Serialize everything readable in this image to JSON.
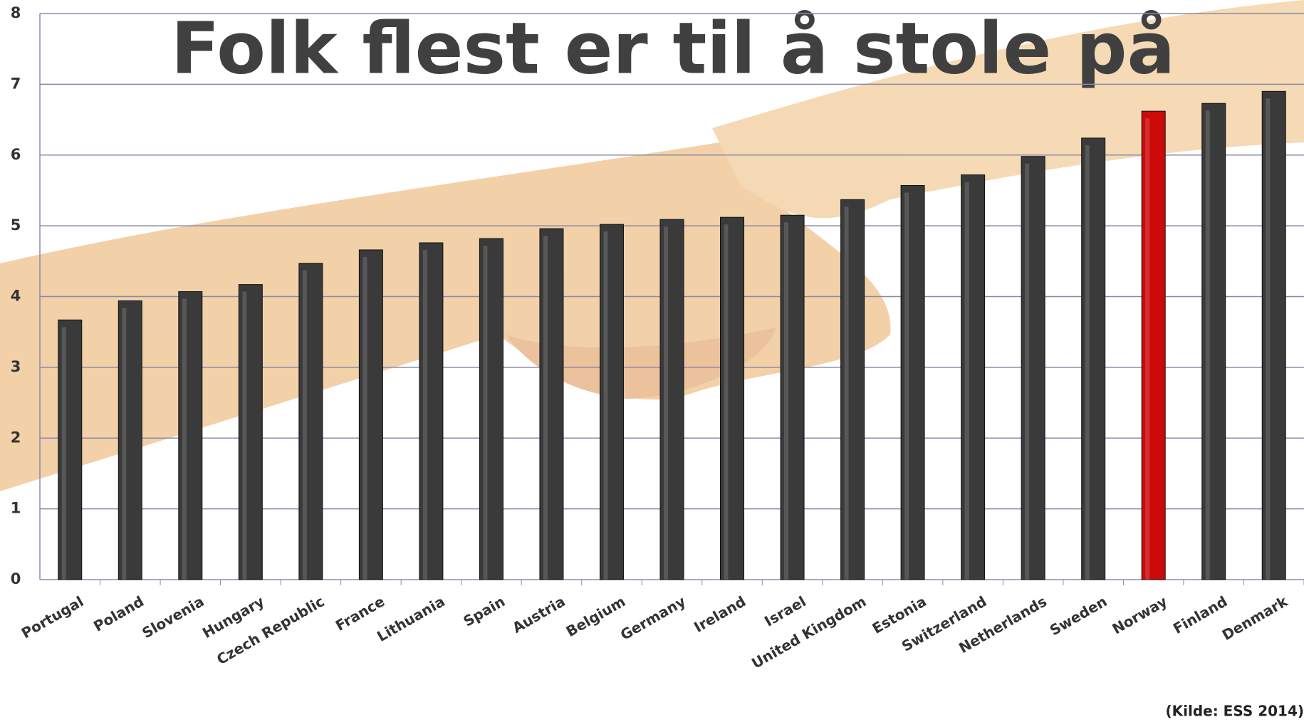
{
  "chart_data": {
    "type": "bar",
    "title": "Folk flest er til å stole på",
    "source": "(Kilde: ESS 2014)",
    "categories": [
      "Portugal",
      "Poland",
      "Slovenia",
      "Hungary",
      "Czech Republic",
      "France",
      "Lithuania",
      "Spain",
      "Austria",
      "Belgium",
      "Germany",
      "Ireland",
      "Israel",
      "United Kingdom",
      "Estonia",
      "Switzerland",
      "Netherlands",
      "Sweden",
      "Norway",
      "Finland",
      "Denmark"
    ],
    "values": [
      3.67,
      3.94,
      4.07,
      4.17,
      4.47,
      4.66,
      4.76,
      4.82,
      4.96,
      5.02,
      5.09,
      5.12,
      5.15,
      5.37,
      5.57,
      5.72,
      5.98,
      6.24,
      6.62,
      6.73,
      6.9
    ],
    "colors": [
      "#3a3a3a",
      "#3a3a3a",
      "#3a3a3a",
      "#3a3a3a",
      "#3a3a3a",
      "#3a3a3a",
      "#3a3a3a",
      "#3a3a3a",
      "#3a3a3a",
      "#3a3a3a",
      "#3a3a3a",
      "#3a3a3a",
      "#3a3a3a",
      "#3a3a3a",
      "#3a3a3a",
      "#3a3a3a",
      "#3a3a3a",
      "#3a3a3a",
      "#cc0a0a",
      "#3a3a3a",
      "#3a3a3a"
    ],
    "ylim": [
      0,
      8
    ],
    "yticks": [
      0,
      1,
      2,
      3,
      4,
      5,
      6,
      7,
      8
    ],
    "grid": true
  }
}
